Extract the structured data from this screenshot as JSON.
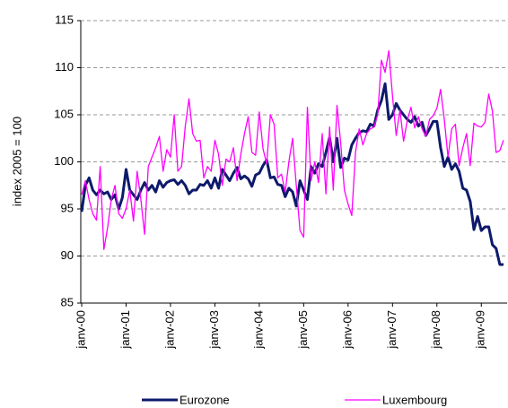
{
  "chart_data": {
    "type": "line",
    "y_label": "index 2005 = 100",
    "categories": [
      "janv-00",
      null,
      null,
      null,
      null,
      null,
      null,
      null,
      null,
      null,
      null,
      null,
      "janv-01",
      null,
      null,
      null,
      null,
      null,
      null,
      null,
      null,
      null,
      null,
      null,
      "janv-02",
      null,
      null,
      null,
      null,
      null,
      null,
      null,
      null,
      null,
      null,
      null,
      "janv-03",
      null,
      null,
      null,
      null,
      null,
      null,
      null,
      null,
      null,
      null,
      null,
      "janv-04",
      null,
      null,
      null,
      null,
      null,
      null,
      null,
      null,
      null,
      null,
      null,
      "janv-05",
      null,
      null,
      null,
      null,
      null,
      null,
      null,
      null,
      null,
      null,
      null,
      "janv-06",
      null,
      null,
      null,
      null,
      null,
      null,
      null,
      null,
      null,
      null,
      null,
      "janv-07",
      null,
      null,
      null,
      null,
      null,
      null,
      null,
      null,
      null,
      null,
      null,
      "janv-08",
      null,
      null,
      null,
      null,
      null,
      null,
      null,
      null,
      null,
      null,
      null,
      "janv-09",
      null,
      null,
      null,
      null,
      null,
      null
    ],
    "series": [
      {
        "name": "Eurozone",
        "color": "#0d1a6b",
        "width": 3,
        "values": [
          94.7,
          97.5,
          98.3,
          97,
          96.5,
          97,
          96.6,
          96.8,
          96,
          96.5,
          95,
          96.2,
          99.2,
          97,
          96.5,
          96,
          97,
          97.8,
          97,
          97.5,
          96.8,
          98,
          97.3,
          97.8,
          98,
          98.1,
          97.6,
          98,
          97.5,
          96.6,
          97,
          97,
          97.6,
          97.5,
          98,
          97.2,
          98.3,
          97.2,
          99.2,
          98.6,
          98,
          98.8,
          99.4,
          98.2,
          98.5,
          98.2,
          97.4,
          98.6,
          98.8,
          99.6,
          100.2,
          98.3,
          98.4,
          97.6,
          97.5,
          96.3,
          97.2,
          96.8,
          95.3,
          98,
          97,
          96,
          99.5,
          98.8,
          99.8,
          99.5,
          101,
          102.6,
          100,
          102.5,
          99.4,
          100.4,
          100.2,
          101.8,
          102.5,
          103.1,
          103.3,
          103.2,
          104,
          103.8,
          105.5,
          106.5,
          108.3,
          104.5,
          105,
          106.2,
          105.5,
          105,
          104.5,
          104.2,
          104.8,
          103.8,
          104.2,
          102.8,
          103.5,
          104.3,
          104.3,
          101.5,
          99.5,
          100.5,
          99.2,
          99.8,
          99,
          97.2,
          97,
          95.8,
          92.8,
          94.2,
          92.7,
          93.1,
          93.1,
          91.2,
          90.8,
          89.1,
          89.1
        ]
      },
      {
        "name": "Luxembourg",
        "color": "#ff00ff",
        "width": 1.3,
        "values": [
          96.5,
          98,
          96,
          94.5,
          93.8,
          99.5,
          90.7,
          93,
          96,
          97.5,
          94.5,
          94,
          95,
          97,
          93.7,
          99,
          96,
          92.3,
          99.5,
          100.5,
          101.5,
          102.7,
          99,
          101.3,
          100.5,
          105,
          99,
          99.5,
          103.8,
          106.7,
          103,
          102.2,
          102.3,
          98.3,
          99.5,
          99,
          102.3,
          100.8,
          97.5,
          100.3,
          100,
          101.5,
          98,
          100.8,
          103,
          104.8,
          101,
          100.7,
          105.3,
          101.4,
          99.8,
          105,
          104,
          98.3,
          98.7,
          96.8,
          100,
          102.5,
          97.5,
          92.7,
          92,
          105.8,
          98,
          100,
          97.8,
          103,
          96.6,
          103.7,
          97,
          106,
          102,
          97,
          95.5,
          94.3,
          101,
          103.5,
          101.8,
          103,
          103.5,
          103.7,
          105,
          110.8,
          109.5,
          111.8,
          107,
          102.8,
          105.5,
          102.2,
          104.4,
          105.8,
          103.6,
          104.8,
          103.5,
          102.7,
          104.5,
          104.9,
          105.7,
          107.7,
          104.5,
          100.5,
          103.5,
          104,
          99.6,
          101.5,
          103,
          99.6,
          104.1,
          103.8,
          103.7,
          104.2,
          107.2,
          105.4,
          101,
          101.2,
          102.3
        ]
      }
    ],
    "ylim": [
      85,
      115
    ],
    "yticks": [
      85,
      90,
      95,
      100,
      105,
      110,
      115
    ],
    "grid": true,
    "legend": "bottom"
  }
}
